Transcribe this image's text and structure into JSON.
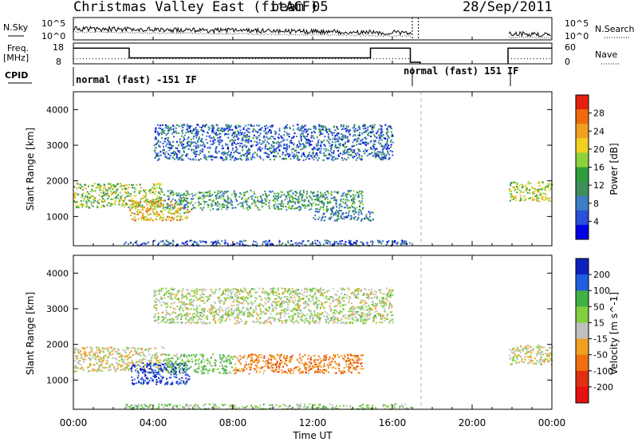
{
  "header": {
    "title": "Christmas Valley East (fitACF)",
    "beam": "beam 05",
    "date": "28/Sep/2011"
  },
  "top_panels": {
    "nsky_label": "N.Sky",
    "nsearch_label": "N.Search",
    "noise_ticks": [
      "10^5",
      "10^0"
    ],
    "freq_label_line1": "Freq.",
    "freq_label_line2": "[MHz]",
    "freq_ticks": [
      "18",
      "8"
    ],
    "nave_label": "Nave",
    "nave_ticks": [
      "60",
      "0"
    ],
    "cpid_label": "CPID",
    "cpid_segments": [
      {
        "label": "normal (fast) -151 IF",
        "start": 0,
        "end": 17.2
      },
      {
        "label": "normal (fast) 151 IF",
        "start": 17.2,
        "end": 21.8
      }
    ]
  },
  "chart_data": [
    {
      "type": "heatmap",
      "name": "power",
      "ylabel": "Slant Range [km]",
      "xlabel": "Time UT",
      "xlim": [
        0,
        24
      ],
      "ylim": [
        180,
        4500
      ],
      "x_ticks": [
        "00:00",
        "04:00",
        "08:00",
        "12:00",
        "16:00",
        "20:00",
        "00:00"
      ],
      "y_ticks": [
        1000,
        2000,
        3000,
        4000
      ],
      "data_gap": [
        17.0,
        21.8
      ],
      "colorbar": {
        "label": "Power [dB]",
        "ticks": [
          "4",
          "8",
          "12",
          "16",
          "20",
          "24",
          "28"
        ],
        "colors": [
          "#0000e6",
          "#2a50d8",
          "#3d7ec4",
          "#3f8f5c",
          "#2f9f3b",
          "#8fd13a",
          "#f0d020",
          "#f0a020",
          "#f06a10",
          "#e62010"
        ]
      },
      "echo_regions": [
        {
          "t0": 0,
          "t1": 4.5,
          "r0": 1250,
          "r1": 1950,
          "level": 0.55
        },
        {
          "t0": 2.8,
          "t1": 5.8,
          "r0": 900,
          "r1": 1500,
          "level": 0.7
        },
        {
          "t0": 4.5,
          "t1": 14.5,
          "r0": 1200,
          "r1": 1750,
          "level": 0.35
        },
        {
          "t0": 4,
          "t1": 16,
          "r0": 2600,
          "r1": 3600,
          "level": 0.2
        },
        {
          "t0": 12,
          "t1": 15,
          "r0": 900,
          "r1": 1200,
          "level": 0.25
        },
        {
          "t0": 2.5,
          "t1": 17,
          "r0": 200,
          "r1": 350,
          "level": 0.15
        },
        {
          "t0": 21.8,
          "t1": 24,
          "r0": 1450,
          "r1": 2000,
          "level": 0.6
        }
      ]
    },
    {
      "type": "heatmap",
      "name": "velocity",
      "ylabel": "Slant Range [km]",
      "xlabel": "Time UT",
      "xlim": [
        0,
        24
      ],
      "ylim": [
        180,
        4500
      ],
      "x_ticks": [
        "00:00",
        "04:00",
        "08:00",
        "12:00",
        "16:00",
        "20:00",
        "00:00"
      ],
      "y_ticks": [
        1000,
        2000,
        3000,
        4000
      ],
      "data_gap": [
        17.0,
        21.8
      ],
      "colorbar": {
        "label": "Velocity [m s^-1]",
        "ticks": [
          "200",
          "100",
          "50",
          "15",
          "-15",
          "-50",
          "-100",
          "-200"
        ],
        "colors": [
          "#1020c0",
          "#2060e0",
          "#40b040",
          "#80d040",
          "#c0c0c0",
          "#f0a020",
          "#f07010",
          "#e03010",
          "#e61010"
        ]
      },
      "echo_regions": [
        {
          "t0": 0,
          "t1": 4.5,
          "r0": 1250,
          "r1": 1950,
          "vel": -10
        },
        {
          "t0": 2.8,
          "t1": 5.8,
          "r0": 900,
          "r1": 1500,
          "vel": 180
        },
        {
          "t0": 4.5,
          "t1": 8,
          "r0": 1200,
          "r1": 1750,
          "vel": 60
        },
        {
          "t0": 8,
          "t1": 14.5,
          "r0": 1200,
          "r1": 1750,
          "vel": -80
        },
        {
          "t0": 4,
          "t1": 16,
          "r0": 2600,
          "r1": 3600,
          "vel": 20
        },
        {
          "t0": 2.5,
          "t1": 17,
          "r0": 200,
          "r1": 350,
          "vel": 40
        },
        {
          "t0": 21.8,
          "t1": 24,
          "r0": 1450,
          "r1": 2000,
          "vel": -5
        }
      ]
    }
  ]
}
